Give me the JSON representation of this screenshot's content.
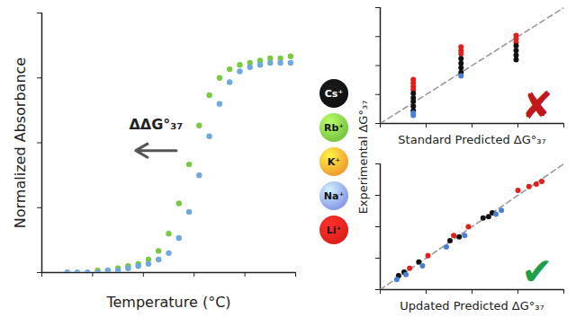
{
  "chart_data": [
    {
      "type": "scatter",
      "xlabel": "Temperature (°C)",
      "ylabel": "Normalized Absorbance",
      "xlim": [
        0,
        100
      ],
      "xticks": [
        0,
        20,
        40,
        60,
        80,
        100
      ],
      "ylim": [
        0,
        1.2
      ],
      "yticks": [
        0,
        0.3,
        0.6,
        0.9,
        1.2
      ],
      "tick_labels": false,
      "grid": false,
      "marker": "circle",
      "x": [
        10,
        14,
        18,
        22,
        26,
        30,
        34,
        38,
        42,
        46,
        50,
        54,
        58,
        62,
        66,
        70,
        74,
        78,
        82,
        86,
        90,
        94,
        98
      ],
      "series": [
        {
          "color": "#7ac943",
          "values": [
            0,
            0,
            0,
            0.01,
            0.01,
            0.02,
            0.03,
            0.04,
            0.06,
            0.1,
            0.18,
            0.32,
            0.5,
            0.68,
            0.82,
            0.9,
            0.94,
            0.96,
            0.97,
            0.98,
            0.99,
            0.99,
            1.0
          ]
        },
        {
          "color": "#6fa8dc",
          "values": [
            0,
            0,
            0,
            0,
            0.01,
            0.01,
            0.02,
            0.03,
            0.04,
            0.06,
            0.09,
            0.16,
            0.28,
            0.45,
            0.63,
            0.78,
            0.88,
            0.93,
            0.95,
            0.96,
            0.97,
            0.97,
            0.97
          ]
        }
      ],
      "annotations": [
        {
          "text": "ΔΔG°₃₇",
          "x": 45,
          "y": 0.66,
          "color": "#222222"
        }
      ]
    },
    {
      "type": "scatter",
      "xlabel": "Standard Predicted ΔG°₃₇",
      "xlim": [
        0,
        10
      ],
      "xticks": [
        0,
        2.5,
        5,
        7.5,
        10
      ],
      "ylim": [
        0,
        10
      ],
      "yticks": [
        0,
        2.5,
        5,
        7.5,
        10
      ],
      "tick_labels": false,
      "grid": false,
      "marker": "circle",
      "series": [
        {
          "type": "line",
          "line_style": "dashed",
          "color": "#999999",
          "x": [
            0,
            10
          ],
          "values": [
            0,
            10
          ]
        },
        {
          "name": "Li⁺",
          "color": "#e0201b",
          "x": [
            1.8,
            1.8,
            1.8,
            1.8,
            4.4,
            4.4,
            4.4,
            7.4,
            7.4,
            7.4
          ],
          "values": [
            3.8,
            3.5,
            3.2,
            2.9,
            6.6,
            6.3,
            6.0,
            7.6,
            7.3,
            7.0
          ]
        },
        {
          "name": "Cs⁺",
          "color": "#111111",
          "x": [
            1.8,
            1.8,
            1.8,
            1.8,
            1.8,
            4.4,
            4.4,
            4.4,
            4.4,
            7.4,
            7.4,
            7.4,
            7.4
          ],
          "values": [
            2.6,
            2.2,
            1.9,
            1.5,
            1.1,
            5.6,
            5.2,
            4.8,
            4.4,
            6.7,
            6.3,
            5.9,
            5.5
          ]
        },
        {
          "name": "Na⁺",
          "color": "#4a7fd4",
          "x": [
            1.8,
            1.8,
            4.4
          ],
          "values": [
            0.9,
            0.7,
            4.1
          ]
        }
      ],
      "annotations": [
        {
          "text": "✘",
          "color": "#c0181b"
        }
      ]
    },
    {
      "type": "scatter",
      "xlabel": "Updated Predicted ΔG°₃₇",
      "xlim": [
        0,
        10
      ],
      "xticks": [
        0,
        2.5,
        5,
        7.5,
        10
      ],
      "ylim": [
        0,
        10
      ],
      "yticks": [
        0,
        2.5,
        5,
        7.5,
        10
      ],
      "tick_labels": false,
      "grid": false,
      "marker": "circle",
      "series": [
        {
          "type": "line",
          "line_style": "dashed",
          "color": "#999999",
          "x": [
            0,
            10
          ],
          "values": [
            0,
            10
          ]
        },
        {
          "name": "Cs⁺",
          "color": "#111111",
          "x": [
            1.0,
            1.3,
            2.1,
            3.8,
            4.3,
            5.6,
            5.9,
            6.1
          ],
          "values": [
            1.1,
            1.4,
            2.2,
            3.9,
            4.2,
            5.7,
            5.8,
            6.1
          ]
        },
        {
          "name": "Na⁺",
          "color": "#4a7fd4",
          "x": [
            0.9,
            1.4,
            2.3,
            3.6,
            4.6,
            6.3,
            6.6
          ],
          "values": [
            0.8,
            1.2,
            1.9,
            3.4,
            4.3,
            6.0,
            6.3
          ]
        },
        {
          "name": "Li⁺",
          "color": "#e0201b",
          "x": [
            1.6,
            2.6,
            4.0,
            4.8,
            7.5,
            8.1,
            8.5,
            8.8
          ],
          "values": [
            1.7,
            2.7,
            4.3,
            5.0,
            7.9,
            8.2,
            8.4,
            8.6
          ]
        }
      ],
      "annotations": [
        {
          "text": "✔",
          "color": "#1f9e4a"
        }
      ]
    }
  ],
  "shared_ylabel": "Experimental ΔG°₃₇",
  "ion_key": [
    {
      "name": "Cs⁺",
      "color": "#111111"
    },
    {
      "name": "Rb⁺",
      "color": "#7ac943"
    },
    {
      "name": "K⁺",
      "color": "#f0a030"
    },
    {
      "name": "Na⁺",
      "color": "#8a9ee8"
    },
    {
      "name": "Li⁺",
      "color": "#e0201b"
    }
  ]
}
